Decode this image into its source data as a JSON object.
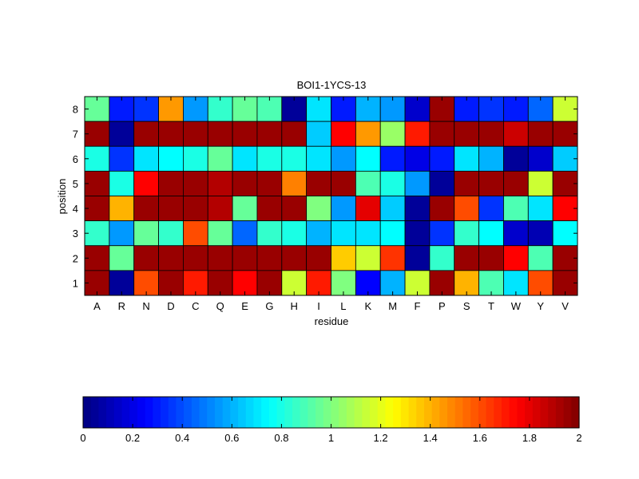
{
  "chart_data": {
    "type": "heatmap",
    "title": "BOI1-1YCS-13",
    "xlabel": "residue",
    "ylabel": "position",
    "columns": [
      "A",
      "R",
      "N",
      "D",
      "C",
      "Q",
      "E",
      "G",
      "H",
      "I",
      "L",
      "K",
      "M",
      "F",
      "P",
      "S",
      "T",
      "W",
      "Y",
      "V"
    ],
    "rows": [
      "8",
      "7",
      "6",
      "5",
      "4",
      "3",
      "2",
      "1"
    ],
    "values": [
      [
        0.95,
        0.3,
        0.35,
        1.45,
        0.55,
        0.85,
        0.95,
        0.9,
        0.05,
        0.7,
        0.3,
        0.6,
        0.55,
        0.15,
        1.95,
        0.3,
        0.35,
        0.3,
        0.45,
        1.15
      ],
      [
        1.95,
        0.05,
        1.95,
        1.95,
        1.95,
        1.95,
        1.95,
        1.95,
        1.95,
        0.65,
        1.75,
        1.45,
        1.05,
        1.7,
        1.95,
        1.95,
        1.95,
        1.85,
        1.95,
        1.95
      ],
      [
        0.8,
        0.35,
        0.7,
        0.75,
        0.8,
        0.95,
        0.7,
        0.8,
        0.8,
        0.7,
        0.55,
        0.75,
        0.3,
        0.2,
        0.3,
        0.7,
        0.6,
        0.05,
        0.15,
        0.65
      ],
      [
        1.95,
        0.8,
        1.75,
        1.95,
        1.95,
        1.9,
        1.95,
        1.95,
        1.5,
        1.95,
        1.95,
        0.9,
        0.8,
        0.55,
        0.05,
        1.95,
        1.95,
        1.95,
        1.15,
        1.95
      ],
      [
        1.95,
        1.4,
        1.95,
        1.95,
        1.95,
        1.9,
        0.95,
        1.95,
        1.95,
        1.0,
        0.55,
        1.8,
        0.65,
        0.05,
        1.95,
        1.6,
        0.35,
        0.9,
        0.7,
        1.75
      ],
      [
        0.85,
        0.55,
        0.95,
        0.85,
        1.6,
        0.95,
        0.45,
        0.85,
        0.8,
        0.6,
        0.7,
        0.7,
        0.75,
        0.05,
        0.35,
        0.85,
        0.75,
        0.15,
        0.1,
        0.75
      ],
      [
        1.95,
        0.95,
        1.95,
        1.95,
        1.95,
        1.95,
        1.95,
        1.95,
        1.95,
        1.95,
        1.35,
        1.15,
        1.65,
        0.05,
        0.85,
        1.95,
        1.95,
        1.75,
        0.9,
        1.95
      ],
      [
        1.95,
        0.05,
        1.6,
        1.95,
        1.7,
        1.95,
        1.75,
        1.95,
        1.15,
        1.7,
        1.0,
        0.25,
        0.6,
        1.15,
        1.95,
        1.4,
        0.9,
        0.7,
        1.6,
        1.95
      ]
    ],
    "clim": [
      0,
      2
    ],
    "colormap": "jet",
    "colorbar": {
      "orientation": "horizontal",
      "ticks": [
        "0",
        "0.2",
        "0.4",
        "0.6",
        "0.8",
        "1",
        "1.2",
        "1.4",
        "1.6",
        "1.8",
        "2"
      ]
    }
  }
}
